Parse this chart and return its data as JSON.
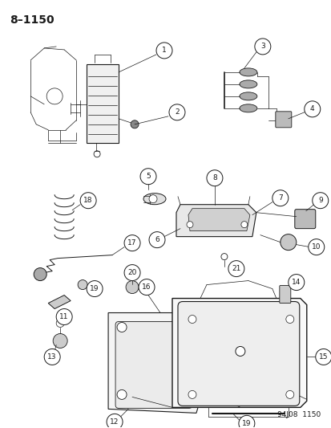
{
  "title": "8–1150",
  "footer": "94J08  1150",
  "bg_color": "#ffffff",
  "title_fontsize": 10,
  "footer_fontsize": 6.5,
  "line_color": "#1a1a1a",
  "light_gray": "#cccccc",
  "mid_gray": "#aaaaaa",
  "label_circle_r": 0.018,
  "label_fontsize": 6.0
}
